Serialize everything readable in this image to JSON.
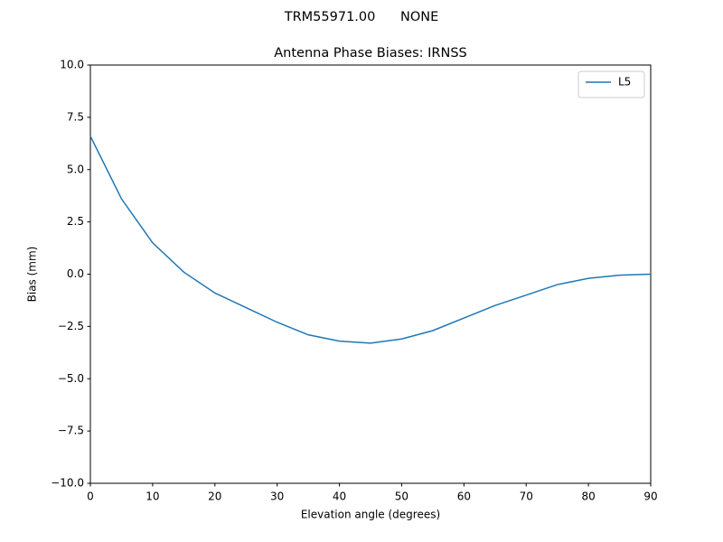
{
  "chart_data": {
    "type": "line",
    "suptitle": "TRM55971.00      NONE",
    "title": "Antenna Phase Biases: IRNSS",
    "xlabel": "Elevation angle (degrees)",
    "ylabel": "Bias (mm)",
    "x": [
      0,
      5,
      10,
      15,
      20,
      25,
      30,
      35,
      40,
      45,
      50,
      55,
      60,
      65,
      70,
      75,
      80,
      85,
      90
    ],
    "series": [
      {
        "name": "L5",
        "color": "#1f77b4",
        "values": [
          6.6,
          3.6,
          1.5,
          0.1,
          -0.9,
          -1.6,
          -2.3,
          -2.9,
          -3.2,
          -3.3,
          -3.1,
          -2.7,
          -2.1,
          -1.5,
          -1.0,
          -0.5,
          -0.2,
          -0.05,
          0.0
        ]
      }
    ],
    "xlim": [
      0,
      90
    ],
    "xticks": [
      0,
      10,
      20,
      30,
      40,
      50,
      60,
      70,
      80,
      90
    ],
    "ylim": [
      -10,
      10
    ],
    "yticks": [
      {
        "value": -10,
        "label": "−10.0"
      },
      {
        "value": -7.5,
        "label": "−7.5"
      },
      {
        "value": -5,
        "label": "−5.0"
      },
      {
        "value": -2.5,
        "label": "−2.5"
      },
      {
        "value": 0,
        "label": "0.0"
      },
      {
        "value": 2.5,
        "label": "2.5"
      },
      {
        "value": 5,
        "label": "5.0"
      },
      {
        "value": 7.5,
        "label": "7.5"
      },
      {
        "value": 10,
        "label": "10.0"
      }
    ],
    "grid": false,
    "legend": "upper right"
  }
}
